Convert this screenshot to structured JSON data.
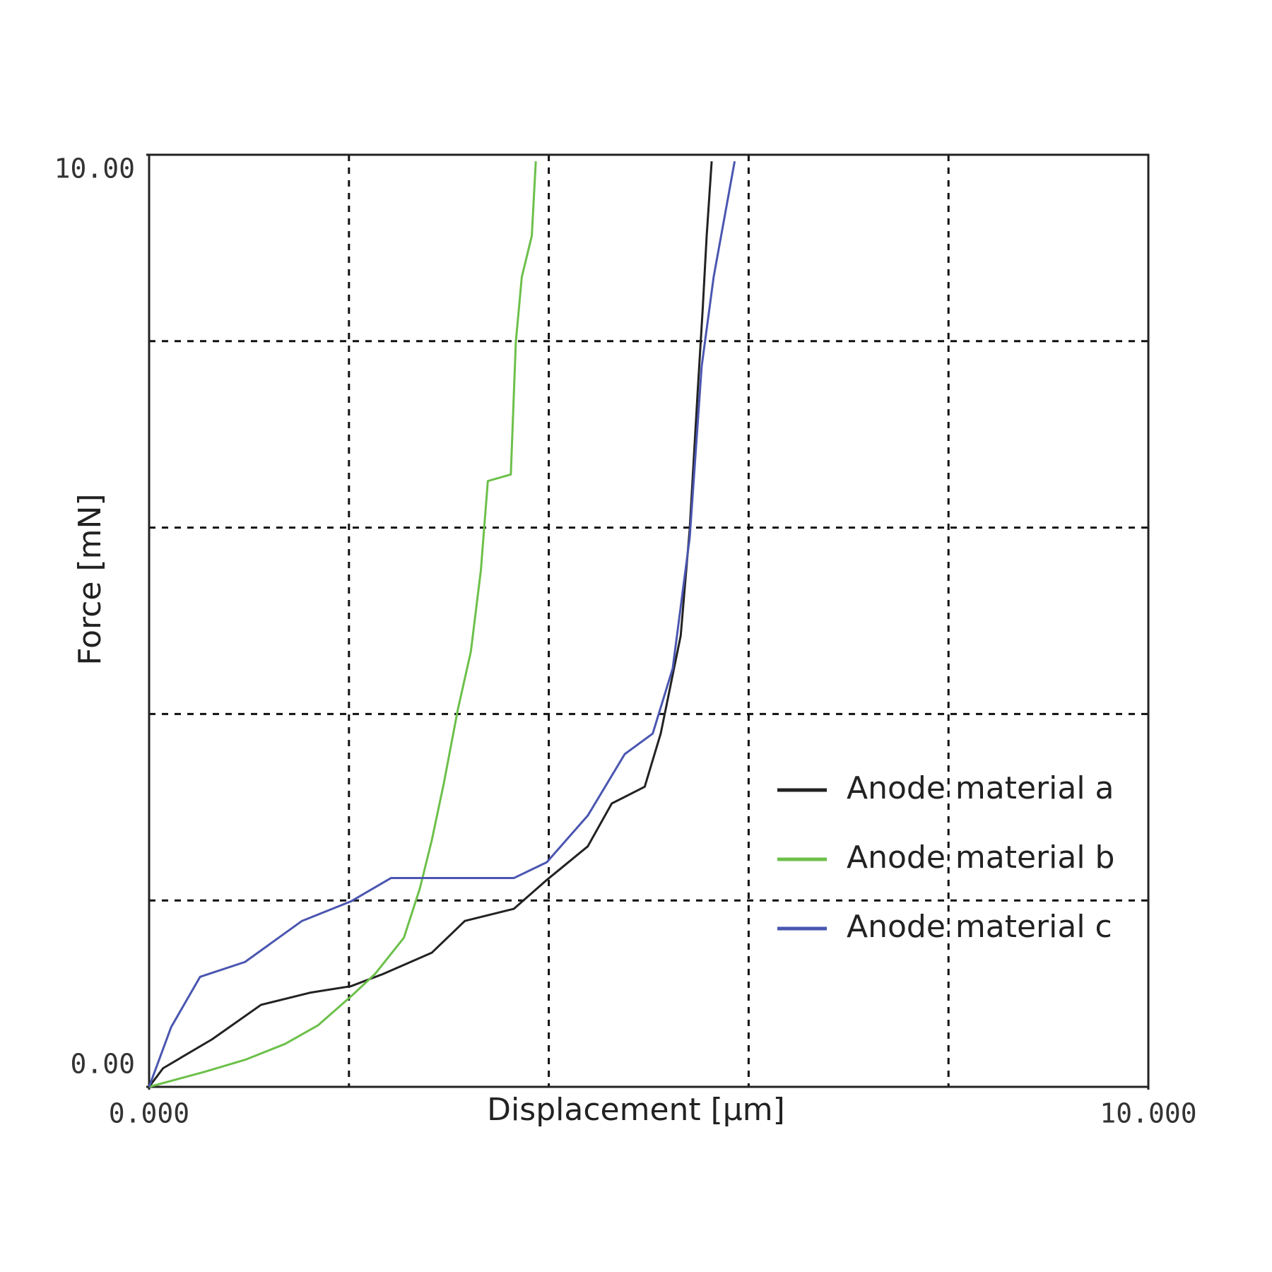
{
  "chart_data": {
    "type": "line",
    "x_label": "Displacement [μm]",
    "y_label": "Force [mN]",
    "xlim": [
      0,
      10
    ],
    "ylim": [
      0,
      10
    ],
    "xticks": [
      {
        "value": 0,
        "label": "0.000"
      },
      {
        "value": 10,
        "label": "10.000"
      }
    ],
    "yticks": [
      {
        "value": 0,
        "label": "0.00"
      },
      {
        "value": 10,
        "label": "10.00"
      }
    ],
    "xgrid": [
      2,
      4,
      6,
      8
    ],
    "ygrid": [
      2,
      4,
      6,
      8
    ],
    "legend": "lower right",
    "series": [
      {
        "name": "Anode material a",
        "color": "#222222",
        "x": [
          0,
          0.14,
          0.63,
          1.12,
          1.61,
          2.02,
          2.34,
          2.83,
          3.16,
          3.65,
          3.98,
          4.39,
          4.63,
          4.96,
          5.12,
          5.32,
          5.41,
          5.49,
          5.54,
          5.58,
          5.63
        ],
        "values": [
          0,
          0.2,
          0.51,
          0.88,
          1.01,
          1.08,
          1.21,
          1.44,
          1.78,
          1.91,
          2.22,
          2.58,
          3.04,
          3.22,
          3.79,
          4.84,
          5.98,
          7.46,
          8.34,
          9.13,
          9.93
        ]
      },
      {
        "name": "Anode material b",
        "color": "#6cc04a",
        "x": [
          0,
          0.55,
          0.96,
          1.36,
          1.69,
          2.02,
          2.26,
          2.55,
          2.71,
          2.83,
          2.95,
          3.09,
          3.22,
          3.32,
          3.39,
          3.62,
          3.67,
          3.73,
          3.83,
          3.87
        ],
        "values": [
          0,
          0.16,
          0.29,
          0.46,
          0.66,
          0.97,
          1.21,
          1.6,
          2.13,
          2.65,
          3.26,
          4.05,
          4.67,
          5.54,
          6.5,
          6.57,
          7.99,
          8.69,
          9.13,
          9.93
        ]
      },
      {
        "name": "Anode material c",
        "color": "#4a56b0",
        "x": [
          0,
          0.22,
          0.51,
          0.96,
          1.53,
          2.02,
          2.42,
          3.65,
          3.98,
          4.39,
          4.76,
          5.04,
          5.24,
          5.41,
          5.53,
          5.65,
          5.86
        ],
        "values": [
          0,
          0.64,
          1.18,
          1.34,
          1.78,
          1.99,
          2.24,
          2.24,
          2.41,
          2.91,
          3.57,
          3.79,
          4.49,
          5.89,
          7.73,
          8.69,
          9.93
        ]
      }
    ]
  }
}
